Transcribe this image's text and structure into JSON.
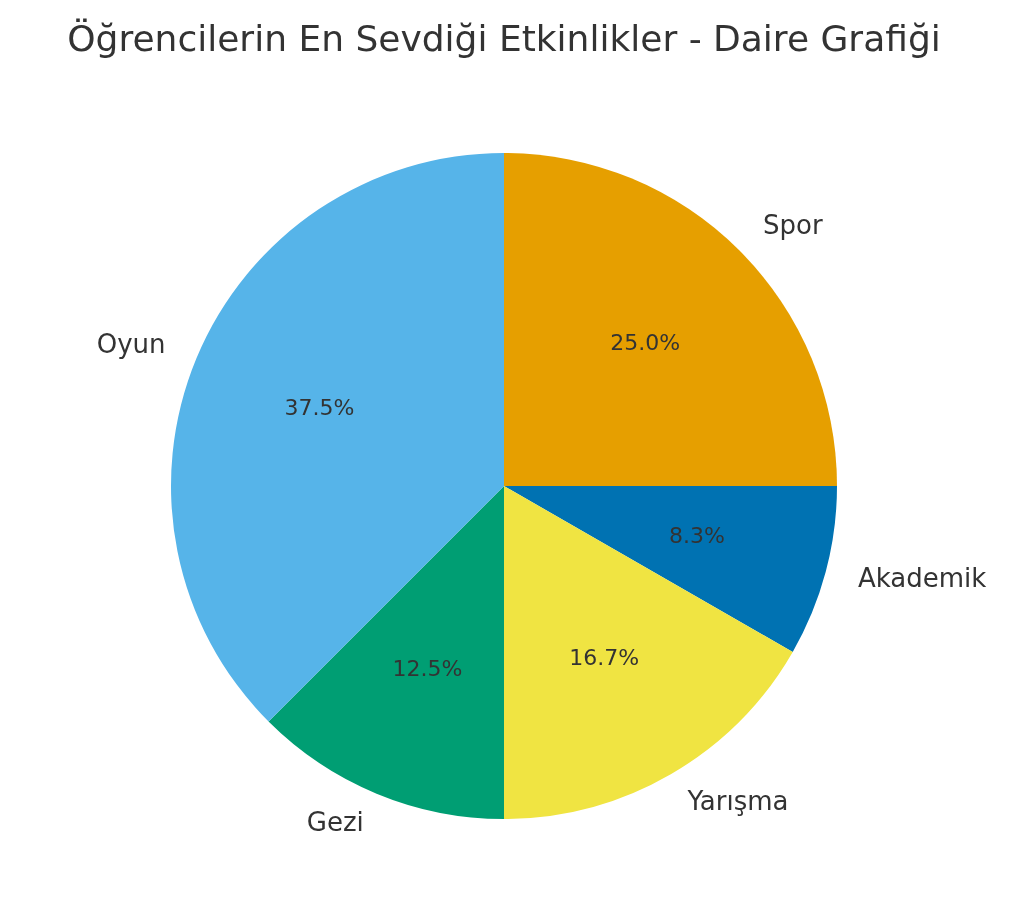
{
  "chart_data": {
    "type": "pie",
    "title": "Öğrencilerin En Sevdiği Etkinlikler - Daire Grafiği",
    "categories": [
      "Spor",
      "Akademik",
      "Yarışma",
      "Gezi",
      "Oyun"
    ],
    "values": [
      25,
      8.3,
      16.7,
      12.5,
      37.5
    ],
    "value_labels": [
      "25.0%",
      "8.3%",
      "16.7%",
      "12.5%",
      "37.5%"
    ],
    "colors": [
      "#e69f00",
      "#0072b2",
      "#f0e442",
      "#009e73",
      "#56b4e9"
    ],
    "legend": false
  }
}
